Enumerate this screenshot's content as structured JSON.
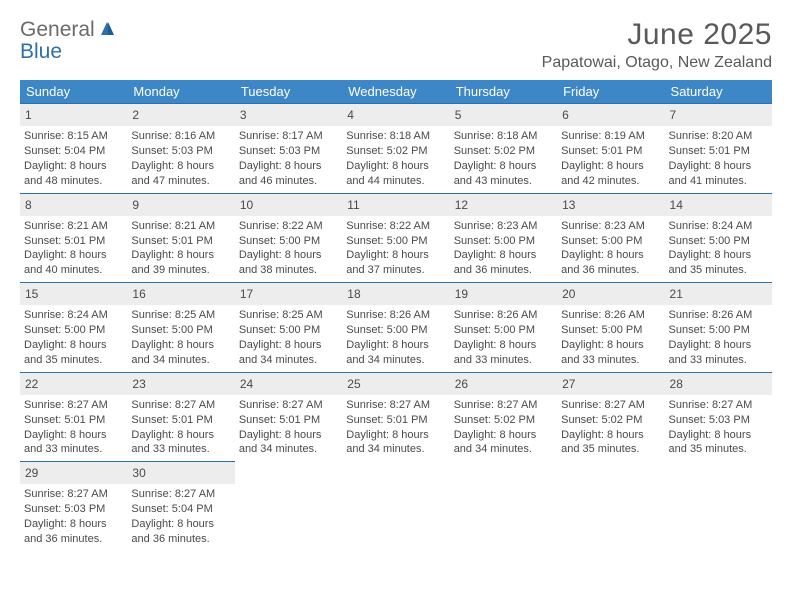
{
  "logo": {
    "word1": "General",
    "word2": "Blue"
  },
  "title": "June 2025",
  "location": "Papatowai, Otago, New Zealand",
  "colors": {
    "header_bg": "#3d87c7",
    "border_top": "#2f6fa8",
    "daynum_bg": "#ededed",
    "text": "#4a4a4a",
    "title_text": "#595959",
    "logo_gray": "#6b6b6b",
    "logo_blue": "#2f6fa8",
    "page_bg": "#ffffff"
  },
  "typography": {
    "title_fontsize_pt": 22,
    "location_fontsize_pt": 12,
    "header_fontsize_pt": 10,
    "cell_fontsize_pt": 8
  },
  "day_headers": [
    "Sunday",
    "Monday",
    "Tuesday",
    "Wednesday",
    "Thursday",
    "Friday",
    "Saturday"
  ],
  "weeks": [
    [
      {
        "n": "1",
        "sr": "Sunrise: 8:15 AM",
        "ss": "Sunset: 5:04 PM",
        "d1": "Daylight: 8 hours",
        "d2": "and 48 minutes."
      },
      {
        "n": "2",
        "sr": "Sunrise: 8:16 AM",
        "ss": "Sunset: 5:03 PM",
        "d1": "Daylight: 8 hours",
        "d2": "and 47 minutes."
      },
      {
        "n": "3",
        "sr": "Sunrise: 8:17 AM",
        "ss": "Sunset: 5:03 PM",
        "d1": "Daylight: 8 hours",
        "d2": "and 46 minutes."
      },
      {
        "n": "4",
        "sr": "Sunrise: 8:18 AM",
        "ss": "Sunset: 5:02 PM",
        "d1": "Daylight: 8 hours",
        "d2": "and 44 minutes."
      },
      {
        "n": "5",
        "sr": "Sunrise: 8:18 AM",
        "ss": "Sunset: 5:02 PM",
        "d1": "Daylight: 8 hours",
        "d2": "and 43 minutes."
      },
      {
        "n": "6",
        "sr": "Sunrise: 8:19 AM",
        "ss": "Sunset: 5:01 PM",
        "d1": "Daylight: 8 hours",
        "d2": "and 42 minutes."
      },
      {
        "n": "7",
        "sr": "Sunrise: 8:20 AM",
        "ss": "Sunset: 5:01 PM",
        "d1": "Daylight: 8 hours",
        "d2": "and 41 minutes."
      }
    ],
    [
      {
        "n": "8",
        "sr": "Sunrise: 8:21 AM",
        "ss": "Sunset: 5:01 PM",
        "d1": "Daylight: 8 hours",
        "d2": "and 40 minutes."
      },
      {
        "n": "9",
        "sr": "Sunrise: 8:21 AM",
        "ss": "Sunset: 5:01 PM",
        "d1": "Daylight: 8 hours",
        "d2": "and 39 minutes."
      },
      {
        "n": "10",
        "sr": "Sunrise: 8:22 AM",
        "ss": "Sunset: 5:00 PM",
        "d1": "Daylight: 8 hours",
        "d2": "and 38 minutes."
      },
      {
        "n": "11",
        "sr": "Sunrise: 8:22 AM",
        "ss": "Sunset: 5:00 PM",
        "d1": "Daylight: 8 hours",
        "d2": "and 37 minutes."
      },
      {
        "n": "12",
        "sr": "Sunrise: 8:23 AM",
        "ss": "Sunset: 5:00 PM",
        "d1": "Daylight: 8 hours",
        "d2": "and 36 minutes."
      },
      {
        "n": "13",
        "sr": "Sunrise: 8:23 AM",
        "ss": "Sunset: 5:00 PM",
        "d1": "Daylight: 8 hours",
        "d2": "and 36 minutes."
      },
      {
        "n": "14",
        "sr": "Sunrise: 8:24 AM",
        "ss": "Sunset: 5:00 PM",
        "d1": "Daylight: 8 hours",
        "d2": "and 35 minutes."
      }
    ],
    [
      {
        "n": "15",
        "sr": "Sunrise: 8:24 AM",
        "ss": "Sunset: 5:00 PM",
        "d1": "Daylight: 8 hours",
        "d2": "and 35 minutes."
      },
      {
        "n": "16",
        "sr": "Sunrise: 8:25 AM",
        "ss": "Sunset: 5:00 PM",
        "d1": "Daylight: 8 hours",
        "d2": "and 34 minutes."
      },
      {
        "n": "17",
        "sr": "Sunrise: 8:25 AM",
        "ss": "Sunset: 5:00 PM",
        "d1": "Daylight: 8 hours",
        "d2": "and 34 minutes."
      },
      {
        "n": "18",
        "sr": "Sunrise: 8:26 AM",
        "ss": "Sunset: 5:00 PM",
        "d1": "Daylight: 8 hours",
        "d2": "and 34 minutes."
      },
      {
        "n": "19",
        "sr": "Sunrise: 8:26 AM",
        "ss": "Sunset: 5:00 PM",
        "d1": "Daylight: 8 hours",
        "d2": "and 33 minutes."
      },
      {
        "n": "20",
        "sr": "Sunrise: 8:26 AM",
        "ss": "Sunset: 5:00 PM",
        "d1": "Daylight: 8 hours",
        "d2": "and 33 minutes."
      },
      {
        "n": "21",
        "sr": "Sunrise: 8:26 AM",
        "ss": "Sunset: 5:00 PM",
        "d1": "Daylight: 8 hours",
        "d2": "and 33 minutes."
      }
    ],
    [
      {
        "n": "22",
        "sr": "Sunrise: 8:27 AM",
        "ss": "Sunset: 5:01 PM",
        "d1": "Daylight: 8 hours",
        "d2": "and 33 minutes."
      },
      {
        "n": "23",
        "sr": "Sunrise: 8:27 AM",
        "ss": "Sunset: 5:01 PM",
        "d1": "Daylight: 8 hours",
        "d2": "and 33 minutes."
      },
      {
        "n": "24",
        "sr": "Sunrise: 8:27 AM",
        "ss": "Sunset: 5:01 PM",
        "d1": "Daylight: 8 hours",
        "d2": "and 34 minutes."
      },
      {
        "n": "25",
        "sr": "Sunrise: 8:27 AM",
        "ss": "Sunset: 5:01 PM",
        "d1": "Daylight: 8 hours",
        "d2": "and 34 minutes."
      },
      {
        "n": "26",
        "sr": "Sunrise: 8:27 AM",
        "ss": "Sunset: 5:02 PM",
        "d1": "Daylight: 8 hours",
        "d2": "and 34 minutes."
      },
      {
        "n": "27",
        "sr": "Sunrise: 8:27 AM",
        "ss": "Sunset: 5:02 PM",
        "d1": "Daylight: 8 hours",
        "d2": "and 35 minutes."
      },
      {
        "n": "28",
        "sr": "Sunrise: 8:27 AM",
        "ss": "Sunset: 5:03 PM",
        "d1": "Daylight: 8 hours",
        "d2": "and 35 minutes."
      }
    ],
    [
      {
        "n": "29",
        "sr": "Sunrise: 8:27 AM",
        "ss": "Sunset: 5:03 PM",
        "d1": "Daylight: 8 hours",
        "d2": "and 36 minutes."
      },
      {
        "n": "30",
        "sr": "Sunrise: 8:27 AM",
        "ss": "Sunset: 5:04 PM",
        "d1": "Daylight: 8 hours",
        "d2": "and 36 minutes."
      },
      null,
      null,
      null,
      null,
      null
    ]
  ]
}
